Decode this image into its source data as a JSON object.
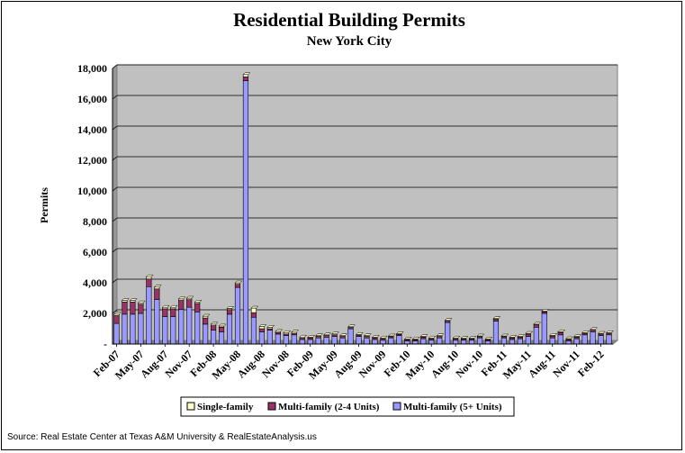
{
  "chart_data": {
    "type": "bar",
    "stacked": true,
    "title": "Residential Building Permits",
    "subtitle": "New York City",
    "ylabel": "Permits",
    "xlabel": "",
    "ylim": [
      0,
      18000
    ],
    "yticks": [
      0,
      2000,
      4000,
      6000,
      8000,
      10000,
      12000,
      14000,
      16000,
      18000
    ],
    "ytick_labels": [
      "-",
      "2,000",
      "4,000",
      "6,000",
      "8,000",
      "10,000",
      "12,000",
      "14,000",
      "16,000",
      "18,000"
    ],
    "x_tick_labels": [
      "Feb-07",
      "May-07",
      "Aug-07",
      "Nov-07",
      "Feb-08",
      "May-08",
      "Aug-08",
      "Nov-08",
      "Feb-09",
      "May-09",
      "Aug-09",
      "Nov-09",
      "Feb-10",
      "May-10",
      "Aug-10",
      "Nov-10",
      "Feb-11",
      "May-11",
      "Aug-11",
      "Nov-11",
      "Feb-12"
    ],
    "legend_position": "bottom",
    "grid": true,
    "colors": {
      "single": "#ffffcc",
      "multi24": "#993366",
      "multi5": "#9999ff",
      "plot_bg": "#c0c0c0"
    },
    "categories": [
      "Feb-07",
      "Mar-07",
      "Apr-07",
      "May-07",
      "Jun-07",
      "Jul-07",
      "Aug-07",
      "Sep-07",
      "Oct-07",
      "Nov-07",
      "Dec-07",
      "Jan-08",
      "Feb-08",
      "Mar-08",
      "Apr-08",
      "May-08",
      "Jun-08",
      "Jul-08",
      "Aug-08",
      "Sep-08",
      "Oct-08",
      "Nov-08",
      "Dec-08",
      "Jan-09",
      "Feb-09",
      "Mar-09",
      "Apr-09",
      "May-09",
      "Jun-09",
      "Jul-09",
      "Aug-09",
      "Sep-09",
      "Oct-09",
      "Nov-09",
      "Dec-09",
      "Jan-10",
      "Feb-10",
      "Mar-10",
      "Apr-10",
      "May-10",
      "Jun-10",
      "Jul-10",
      "Aug-10",
      "Sep-10",
      "Oct-10",
      "Nov-10",
      "Dec-10",
      "Jan-11",
      "Feb-11",
      "Mar-11",
      "Apr-11",
      "May-11",
      "Jun-11",
      "Jul-11",
      "Aug-11",
      "Sep-11",
      "Oct-11",
      "Nov-11",
      "Dec-11",
      "Jan-12",
      "Feb-12",
      "Mar-12"
    ],
    "series": [
      {
        "name": "Single-family",
        "values": [
          100,
          100,
          100,
          100,
          150,
          120,
          100,
          100,
          100,
          100,
          100,
          120,
          100,
          80,
          80,
          100,
          150,
          300,
          150,
          100,
          80,
          100,
          80,
          80,
          50,
          50,
          50,
          60,
          50,
          50,
          50,
          50,
          50,
          50,
          50,
          50,
          50,
          50,
          50,
          50,
          50,
          50,
          50,
          50,
          50,
          50,
          50,
          50,
          50,
          50,
          50,
          50,
          50,
          50,
          50,
          50,
          50,
          50,
          50,
          50,
          50,
          50
        ]
      },
      {
        "name": "Multi-family (2-4 Units)",
        "values": [
          500,
          800,
          800,
          600,
          500,
          700,
          500,
          500,
          600,
          500,
          550,
          400,
          300,
          300,
          300,
          200,
          250,
          300,
          200,
          100,
          100,
          100,
          100,
          80,
          100,
          100,
          100,
          100,
          100,
          80,
          80,
          100,
          100,
          100,
          80,
          80,
          80,
          80,
          100,
          100,
          100,
          100,
          100,
          80,
          80,
          80,
          80,
          120,
          80,
          100,
          100,
          150,
          150,
          100,
          120,
          150,
          100,
          100,
          100,
          100,
          100,
          100
        ]
      },
      {
        "name": "Multi-family (5+ Units)",
        "values": [
          1350,
          1950,
          1950,
          2000,
          3750,
          2900,
          1800,
          1800,
          2250,
          2400,
          2100,
          1300,
          900,
          800,
          1950,
          3700,
          17200,
          1750,
          800,
          900,
          650,
          550,
          600,
          300,
          300,
          400,
          450,
          500,
          400,
          1000,
          500,
          400,
          300,
          250,
          400,
          550,
          200,
          200,
          350,
          250,
          400,
          1400,
          250,
          250,
          250,
          400,
          200,
          1500,
          400,
          300,
          350,
          500,
          1100,
          2000,
          400,
          600,
          200,
          350,
          600,
          800,
          550,
          600
        ]
      }
    ]
  },
  "legend": {
    "single": "Single-family",
    "multi24": "Multi-family (2-4 Units)",
    "multi5": "Multi-family (5+ Units)"
  },
  "source": "Source: Real Estate Center at Texas A&M University & RealEstateAnalysis.us"
}
